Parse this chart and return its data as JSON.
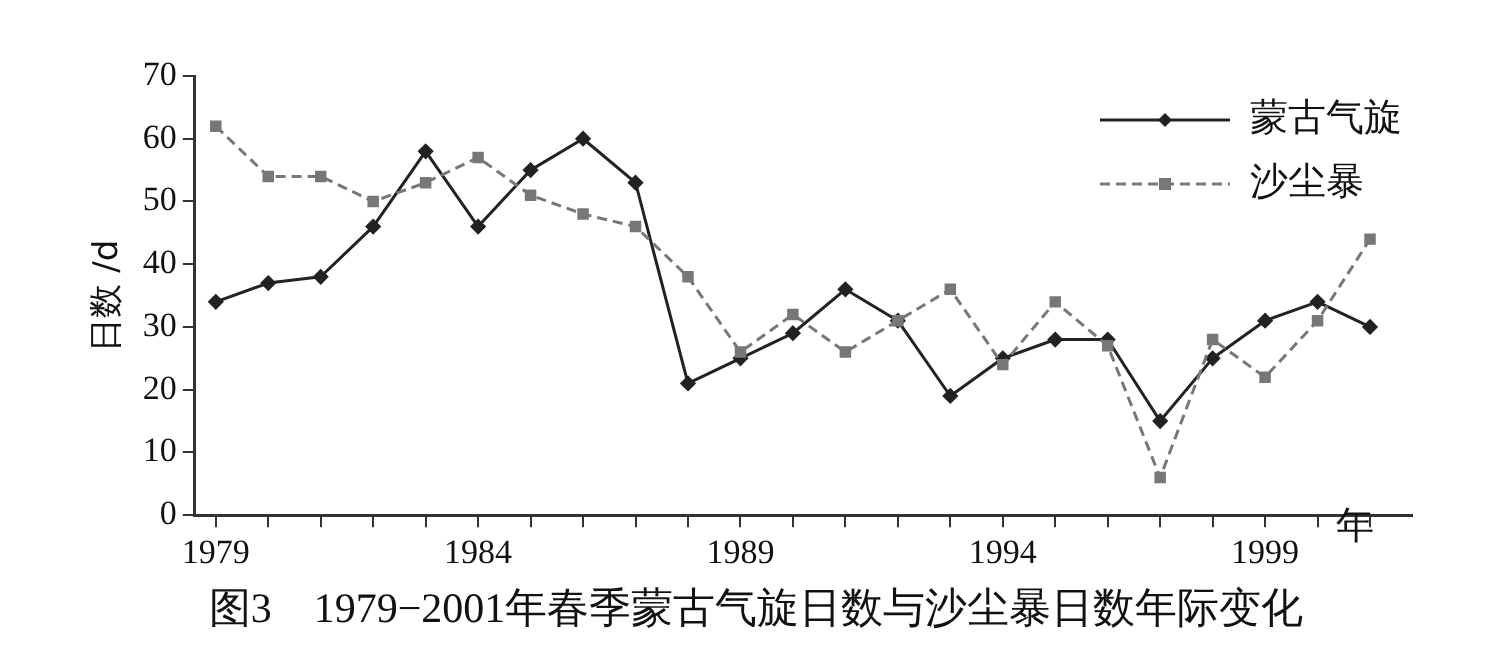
{
  "chart_data": {
    "type": "line",
    "title": "图3　1979−2001年春季蒙古气旋日数与沙尘暴日数年际变化",
    "xlabel": "年",
    "ylabel": "日数 /d",
    "x": [
      1979,
      1980,
      1981,
      1982,
      1983,
      1984,
      1985,
      1986,
      1987,
      1988,
      1989,
      1990,
      1991,
      1992,
      1993,
      1994,
      1995,
      1996,
      1997,
      1998,
      1999,
      2000,
      2001
    ],
    "series": [
      {
        "name": "蒙古气旋",
        "color": "#222222",
        "marker": "diamond",
        "line_style": "solid",
        "values": [
          34,
          37,
          38,
          46,
          58,
          46,
          55,
          60,
          53,
          21,
          25,
          29,
          36,
          31,
          19,
          25,
          28,
          28,
          15,
          25,
          31,
          34,
          30
        ]
      },
      {
        "name": "沙尘暴",
        "color": "#777777",
        "marker": "square",
        "line_style": "dashed",
        "values": [
          62,
          54,
          54,
          50,
          53,
          57,
          51,
          48,
          46,
          38,
          26,
          32,
          26,
          31,
          36,
          24,
          34,
          27,
          6,
          28,
          22,
          31,
          44
        ]
      }
    ],
    "xlim": [
      1978.6,
      2001.8
    ],
    "xticks": [
      1979,
      {
        "value": 1980,
        "label": null
      },
      {
        "value": 1981,
        "label": null
      },
      {
        "value": 1982,
        "label": null
      },
      {
        "value": 1983,
        "label": null
      },
      1984,
      {
        "value": 1985,
        "label": null
      },
      {
        "value": 1986,
        "label": null
      },
      {
        "value": 1987,
        "label": null
      },
      {
        "value": 1988,
        "label": null
      },
      1989,
      {
        "value": 1990,
        "label": null
      },
      {
        "value": 1991,
        "label": null
      },
      {
        "value": 1992,
        "label": null
      },
      {
        "value": 1993,
        "label": null
      },
      1994,
      {
        "value": 1995,
        "label": null
      },
      {
        "value": 1996,
        "label": null
      },
      {
        "value": 1997,
        "label": null
      },
      {
        "value": 1998,
        "label": null
      },
      1999,
      {
        "value": 2000,
        "label": null
      },
      {
        "value": 2001,
        "label": null
      }
    ],
    "ylim": [
      0,
      70
    ],
    "yticks": [
      0,
      10,
      20,
      30,
      40,
      50,
      60,
      70
    ],
    "grid": false,
    "legend": "top right"
  }
}
